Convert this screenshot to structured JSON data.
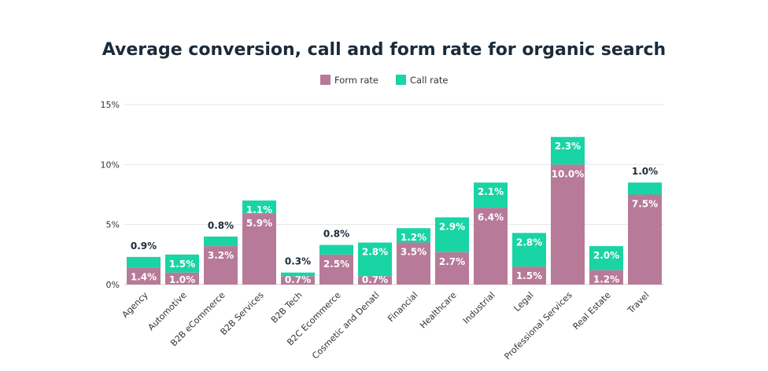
{
  "chart_data": {
    "type": "bar",
    "stacked": true,
    "title": "Average conversion, call and form rate for organic search",
    "xlabel": "",
    "ylabel": "",
    "ylim": [
      0,
      15
    ],
    "yticks": [
      "0%",
      "5%",
      "10%",
      "15%"
    ],
    "grid": true,
    "legend_position": "top-center",
    "categories": [
      "Agency",
      "Automotive",
      "B2B eCommerce",
      "B2B Services",
      "B2B Tech",
      "B2C Ecommerce",
      "Cosmetic and Denatl",
      "Financial",
      "Healthcare",
      "Industrial",
      "Legal",
      "Professional Services",
      "Real Estate",
      "Travel"
    ],
    "series": [
      {
        "name": "Form rate",
        "color": "#b87a99",
        "values": [
          1.4,
          1.0,
          3.2,
          5.9,
          0.7,
          2.5,
          0.7,
          3.5,
          2.7,
          6.4,
          1.5,
          10.0,
          1.2,
          7.5
        ],
        "labels": [
          "1.4%",
          "1.0%",
          "3.2%",
          "5.9%",
          "0.7%",
          "2.5%",
          "0.7%",
          "3.5%",
          "2.7%",
          "6.4%",
          "1.5%",
          "10.0%",
          "1.2%",
          "7.5%"
        ]
      },
      {
        "name": "Call rate",
        "color": "#19d4a4",
        "values": [
          0.9,
          1.5,
          0.8,
          1.1,
          0.3,
          0.8,
          2.8,
          1.2,
          2.9,
          2.1,
          2.8,
          2.3,
          2.0,
          1.0
        ],
        "labels": [
          "0.9%",
          "1.5%",
          "0.8%",
          "1.1%",
          "0.3%",
          "0.8%",
          "2.8%",
          "1.2%",
          "2.9%",
          "2.1%",
          "2.8%",
          "2.3%",
          "2.0%",
          "1.0%"
        ]
      }
    ]
  }
}
